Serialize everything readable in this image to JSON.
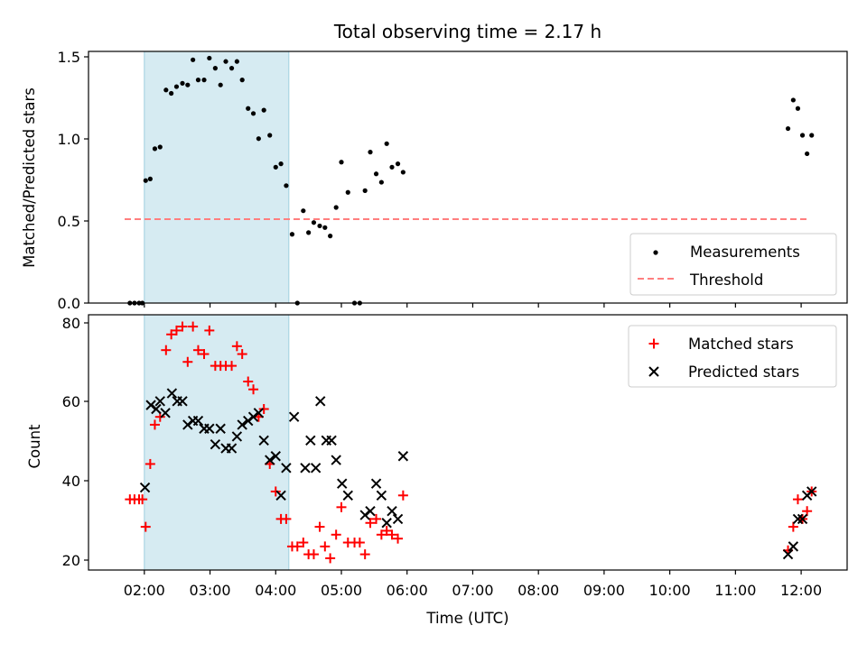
{
  "title": "Total observing time = 2.17 h",
  "xlabel": "Time (UTC)",
  "xticks": [
    "02:00",
    "03:00",
    "04:00",
    "05:00",
    "06:00",
    "07:00",
    "08:00",
    "09:00",
    "10:00",
    "11:00",
    "12:00"
  ],
  "colors": {
    "measure": "#000000",
    "threshold": "#ff7f7f",
    "matched": "#ff0000",
    "predicted": "#000000",
    "shade": "#add8e6"
  },
  "chart_data": [
    {
      "type": "scatter",
      "ylabel": "Matched/Predicted stars",
      "yticks": [
        "0.0",
        "0.5",
        "1.0",
        "1.5"
      ],
      "ylim": [
        0,
        1.5
      ],
      "xlim_hours": [
        1.15,
        12.7
      ],
      "shaded_span_hours": [
        2.0,
        4.2
      ],
      "legend": [
        "Measurements",
        "Threshold"
      ],
      "threshold": {
        "value": 0.5,
        "x_range": [
          1.7,
          12.1
        ]
      },
      "series": [
        {
          "name": "Measurements",
          "x": [
            1.78,
            1.85,
            1.92,
            1.97,
            2.02,
            2.09,
            2.16,
            2.24,
            2.33,
            2.41,
            2.49,
            2.58,
            2.66,
            2.74,
            2.82,
            2.91,
            2.99,
            3.08,
            3.16,
            3.24,
            3.33,
            3.41,
            3.49,
            3.58,
            3.66,
            3.74,
            3.82,
            3.91,
            4.0,
            4.08,
            4.16,
            4.25,
            4.33,
            4.42,
            4.5,
            4.58,
            4.67,
            4.75,
            4.83,
            4.92,
            5.0,
            5.1,
            5.2,
            5.28,
            5.36,
            5.44,
            5.53,
            5.61,
            5.69,
            5.77,
            5.86,
            5.94,
            11.8,
            11.88,
            11.95,
            12.02,
            12.09,
            12.16
          ],
          "y": [
            0.0,
            0.0,
            0.0,
            0.0,
            0.73,
            0.74,
            0.92,
            0.93,
            1.27,
            1.25,
            1.29,
            1.31,
            1.3,
            1.45,
            1.33,
            1.33,
            1.46,
            1.4,
            1.3,
            1.44,
            1.4,
            1.44,
            1.33,
            1.16,
            1.13,
            0.98,
            1.15,
            1.0,
            0.81,
            0.83,
            0.7,
            0.41,
            0.0,
            0.55,
            0.42,
            0.48,
            0.46,
            0.45,
            0.4,
            0.57,
            0.84,
            0.66,
            0.0,
            0.0,
            0.67,
            0.9,
            0.77,
            0.72,
            0.95,
            0.81,
            0.83,
            0.78,
            1.04,
            1.21,
            1.16,
            1.0,
            0.89,
            1.0
          ]
        }
      ]
    },
    {
      "type": "scatter",
      "ylabel": "Count",
      "yticks": [
        "20",
        "40",
        "60",
        "80"
      ],
      "ylim": [
        17,
        82
      ],
      "xlim_hours": [
        1.15,
        12.7
      ],
      "shaded_span_hours": [
        2.0,
        4.2
      ],
      "legend": [
        "Matched stars",
        "Predicted stars"
      ],
      "series": [
        {
          "name": "Matched stars",
          "x": [
            1.78,
            1.85,
            1.92,
            1.97,
            2.02,
            2.09,
            2.16,
            2.24,
            2.33,
            2.41,
            2.49,
            2.58,
            2.66,
            2.74,
            2.82,
            2.91,
            2.99,
            3.08,
            3.16,
            3.24,
            3.33,
            3.41,
            3.49,
            3.58,
            3.66,
            3.74,
            3.82,
            3.91,
            4.0,
            4.08,
            4.16,
            4.25,
            4.33,
            4.42,
            4.5,
            4.58,
            4.67,
            4.75,
            4.83,
            4.92,
            5.0,
            5.1,
            5.2,
            5.28,
            5.36,
            5.44,
            5.53,
            5.61,
            5.69,
            5.77,
            5.86,
            5.94,
            11.8,
            11.88,
            11.95,
            12.02,
            12.09,
            12.16
          ],
          "y": [
            35,
            35,
            35,
            35,
            28,
            44,
            54,
            56,
            73,
            77,
            78,
            79,
            70,
            79,
            73,
            72,
            78,
            69,
            69,
            69,
            69,
            74,
            72,
            65,
            63,
            56,
            58,
            44,
            37,
            30,
            30,
            23,
            23,
            24,
            21,
            21,
            28,
            23,
            20,
            26,
            33,
            24,
            24,
            24,
            21,
            29,
            30,
            26,
            27,
            26,
            25,
            36,
            22,
            28,
            35,
            30,
            32,
            37
          ]
        },
        {
          "name": "Predicted stars",
          "x": [
            2.01,
            2.1,
            2.18,
            2.24,
            2.32,
            2.42,
            2.5,
            2.58,
            2.66,
            2.74,
            2.82,
            2.91,
            2.99,
            3.08,
            3.16,
            3.24,
            3.33,
            3.41,
            3.49,
            3.58,
            3.66,
            3.74,
            3.82,
            3.91,
            4.0,
            4.08,
            4.16,
            4.28,
            4.45,
            4.53,
            4.61,
            4.68,
            4.77,
            4.85,
            4.92,
            5.01,
            5.1,
            5.36,
            5.44,
            5.53,
            5.61,
            5.69,
            5.77,
            5.86,
            5.94,
            11.8,
            11.88,
            11.95,
            12.02,
            12.09,
            12.16
          ],
          "y": [
            38,
            59,
            58,
            60,
            57,
            62,
            60,
            60,
            54,
            55,
            55,
            53,
            53,
            49,
            53,
            48,
            48,
            51,
            54,
            55,
            56,
            57,
            50,
            45,
            46,
            36,
            43,
            56,
            43,
            50,
            43,
            60,
            50,
            50,
            45,
            39,
            36,
            31,
            32,
            39,
            36,
            29,
            32,
            30,
            46,
            21,
            23,
            30,
            30,
            36,
            37
          ]
        }
      ]
    }
  ]
}
